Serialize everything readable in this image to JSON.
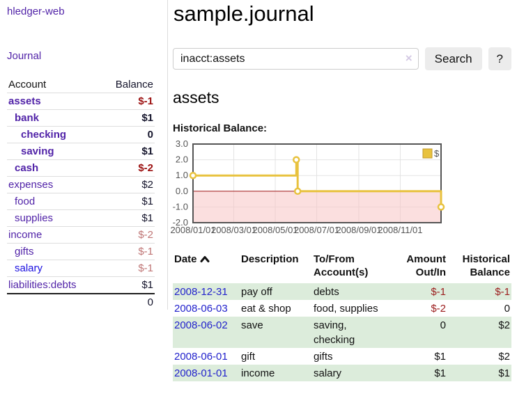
{
  "app": {
    "brand": "hledger-web"
  },
  "sidebar": {
    "journal_link": "Journal",
    "accounts_table": {
      "headers": {
        "account": "Account",
        "balance": "Balance"
      },
      "rows": [
        {
          "name": "assets",
          "depth": 1,
          "bold": true,
          "balance": "$-1",
          "negative": true,
          "unvisited": false
        },
        {
          "name": "bank",
          "depth": 2,
          "bold": true,
          "balance": "$1",
          "negative": false,
          "unvisited": false
        },
        {
          "name": "checking",
          "depth": 3,
          "bold": true,
          "balance": "0",
          "negative": false,
          "unvisited": false
        },
        {
          "name": "saving",
          "depth": 3,
          "bold": true,
          "balance": "$1",
          "negative": false,
          "unvisited": false
        },
        {
          "name": "cash",
          "depth": 2,
          "bold": true,
          "balance": "$-2",
          "negative": true,
          "unvisited": false
        },
        {
          "name": "expenses",
          "depth": 1,
          "bold": false,
          "balance": "$2",
          "negative": false,
          "unvisited": false
        },
        {
          "name": "food",
          "depth": 2,
          "bold": false,
          "balance": "$1",
          "negative": false,
          "unvisited": false
        },
        {
          "name": "supplies",
          "depth": 2,
          "bold": false,
          "balance": "$1",
          "negative": false,
          "unvisited": false
        },
        {
          "name": "income",
          "depth": 1,
          "bold": false,
          "balance": "$-2",
          "negative": true,
          "unvisited": false
        },
        {
          "name": "gifts",
          "depth": 2,
          "bold": false,
          "balance": "$-1",
          "negative": true,
          "unvisited": false
        },
        {
          "name": "salary",
          "depth": 2,
          "bold": false,
          "balance": "$-1",
          "negative": true,
          "unvisited": true
        },
        {
          "name": "liabilities:debts",
          "depth": 1,
          "bold": false,
          "balance": "$1",
          "negative": false,
          "unvisited": false
        }
      ],
      "total": "0"
    }
  },
  "header": {
    "title": "sample.journal"
  },
  "search": {
    "query": "inacct:assets",
    "clear_icon": "×",
    "button_label": "Search",
    "help_label": "?"
  },
  "account_page": {
    "heading": "assets",
    "chart_label": "Historical Balance:"
  },
  "chart_data": {
    "type": "line",
    "title": "Historical Balance",
    "step": true,
    "xlim": [
      "2008/01/01",
      "2008/12/31"
    ],
    "ylim": [
      -2,
      3
    ],
    "x_ticks": [
      "2008/01/01",
      "2008/03/01",
      "2008/05/01",
      "2008/07/01",
      "2008/09/01",
      "2008/11/01"
    ],
    "y_ticks": [
      3.0,
      2.0,
      1.0,
      0.0,
      -1.0,
      -2.0
    ],
    "grid": true,
    "legend_position": "top-right",
    "series": [
      {
        "name": "$",
        "color": "#e8c23e",
        "points": [
          [
            "2008/01/01",
            1
          ],
          [
            "2008/06/01",
            2
          ],
          [
            "2008/06/03",
            0
          ],
          [
            "2008/12/31",
            -1
          ]
        ]
      }
    ],
    "negative_region_color": "#f7c5c5",
    "zero_line_color": "#9e1616",
    "grid_color": "#e3e3e3",
    "border_color": "#545454",
    "tick_label_color": "#545454"
  },
  "register": {
    "headers": {
      "date": "Date",
      "description": "Description",
      "accounts": "To/From Account(s)",
      "amount": "Amount Out/In",
      "balance": "Historical Balance"
    },
    "rows": [
      {
        "date": "2008-12-31",
        "description": "pay off",
        "accounts": "debts",
        "amount": "$-1",
        "amount_negative": true,
        "balance": "$-1",
        "balance_negative": true
      },
      {
        "date": "2008-06-03",
        "description": "eat & shop",
        "accounts": "food, supplies",
        "amount": "$-2",
        "amount_negative": true,
        "balance": "0",
        "balance_negative": false
      },
      {
        "date": "2008-06-02",
        "description": "save",
        "accounts": "saving, checking",
        "amount": "0",
        "amount_negative": false,
        "balance": "$2",
        "balance_negative": false
      },
      {
        "date": "2008-06-01",
        "description": "gift",
        "accounts": "gifts",
        "amount": "$1",
        "amount_negative": false,
        "balance": "$2",
        "balance_negative": false
      },
      {
        "date": "2008-01-01",
        "description": "income",
        "accounts": "salary",
        "amount": "$1",
        "amount_negative": false,
        "balance": "$1",
        "balance_negative": false
      }
    ]
  }
}
